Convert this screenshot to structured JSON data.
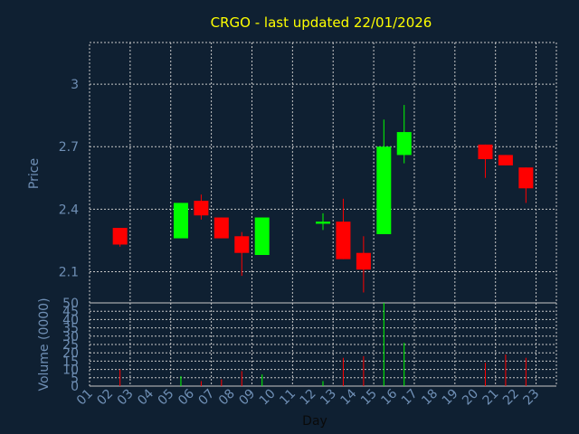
{
  "title": "CRGO - last updated 22/01/2026",
  "colors": {
    "background": "#0f2032",
    "title": "#ffff00",
    "axis_text": "#6f8fb5",
    "grid": "#c8c8c8",
    "up": "#00ff00",
    "down": "#ff0000"
  },
  "chart_data": [
    {
      "type": "candlestick",
      "ylabel": "Price",
      "ylim": [
        1.95,
        3.2
      ],
      "yticks": [
        2.1,
        2.4,
        2.7,
        3
      ],
      "ytick_labels": [
        "2.1",
        "2.4",
        "2.7",
        "3"
      ],
      "grid": true,
      "candles": [
        {
          "day": 2,
          "open": 2.31,
          "close": 2.23,
          "high": 2.31,
          "low": 2.22
        },
        {
          "day": 5,
          "open": 2.26,
          "close": 2.43,
          "high": 2.43,
          "low": 2.26
        },
        {
          "day": 6,
          "open": 2.44,
          "close": 2.37,
          "high": 2.47,
          "low": 2.35
        },
        {
          "day": 7,
          "open": 2.36,
          "close": 2.26,
          "high": 2.36,
          "low": 2.26
        },
        {
          "day": 8,
          "open": 2.27,
          "close": 2.19,
          "high": 2.29,
          "low": 2.08
        },
        {
          "day": 9,
          "open": 2.18,
          "close": 2.36,
          "high": 2.36,
          "low": 2.18
        },
        {
          "day": 12,
          "open": 2.33,
          "close": 2.34,
          "high": 2.38,
          "low": 2.3
        },
        {
          "day": 13,
          "open": 2.34,
          "close": 2.16,
          "high": 2.45,
          "low": 2.16
        },
        {
          "day": 14,
          "open": 2.19,
          "close": 2.11,
          "high": 2.27,
          "low": 2.0
        },
        {
          "day": 15,
          "open": 2.28,
          "close": 2.7,
          "high": 2.83,
          "low": 2.28
        },
        {
          "day": 16,
          "open": 2.66,
          "close": 2.77,
          "high": 2.9,
          "low": 2.62
        },
        {
          "day": 20,
          "open": 2.71,
          "close": 2.64,
          "high": 2.71,
          "low": 2.55
        },
        {
          "day": 21,
          "open": 2.66,
          "close": 2.61,
          "high": 2.66,
          "low": 2.61
        },
        {
          "day": 22,
          "open": 2.6,
          "close": 2.5,
          "high": 2.6,
          "low": 2.43
        }
      ]
    },
    {
      "type": "bar",
      "xlabel": "Day",
      "ylabel": "Volume (0000)",
      "ylim": [
        0,
        50
      ],
      "yticks": [
        0,
        5,
        10,
        15,
        20,
        25,
        30,
        35,
        40,
        45,
        50
      ],
      "ytick_labels": [
        "0",
        "5",
        "10",
        "15",
        "20",
        "25",
        "30",
        "35",
        "40",
        "45",
        "50"
      ],
      "categories": [
        "01",
        "02",
        "03",
        "04",
        "05",
        "06",
        "07",
        "08",
        "09",
        "10",
        "11",
        "12",
        "13",
        "14",
        "15",
        "16",
        "17",
        "18",
        "19",
        "20",
        "21",
        "22",
        "23"
      ],
      "volumes": [
        {
          "day": 2,
          "value": 10,
          "direction": "down"
        },
        {
          "day": 5,
          "value": 6,
          "direction": "up"
        },
        {
          "day": 6,
          "value": 3,
          "direction": "down"
        },
        {
          "day": 7,
          "value": 4,
          "direction": "down"
        },
        {
          "day": 8,
          "value": 9,
          "direction": "down"
        },
        {
          "day": 9,
          "value": 7,
          "direction": "up"
        },
        {
          "day": 12,
          "value": 3,
          "direction": "up"
        },
        {
          "day": 13,
          "value": 17,
          "direction": "down"
        },
        {
          "day": 14,
          "value": 18,
          "direction": "down"
        },
        {
          "day": 15,
          "value": 50,
          "direction": "up"
        },
        {
          "day": 16,
          "value": 26,
          "direction": "up"
        },
        {
          "day": 20,
          "value": 14,
          "direction": "down"
        },
        {
          "day": 21,
          "value": 19,
          "direction": "down"
        },
        {
          "day": 22,
          "value": 17,
          "direction": "down"
        }
      ]
    }
  ]
}
